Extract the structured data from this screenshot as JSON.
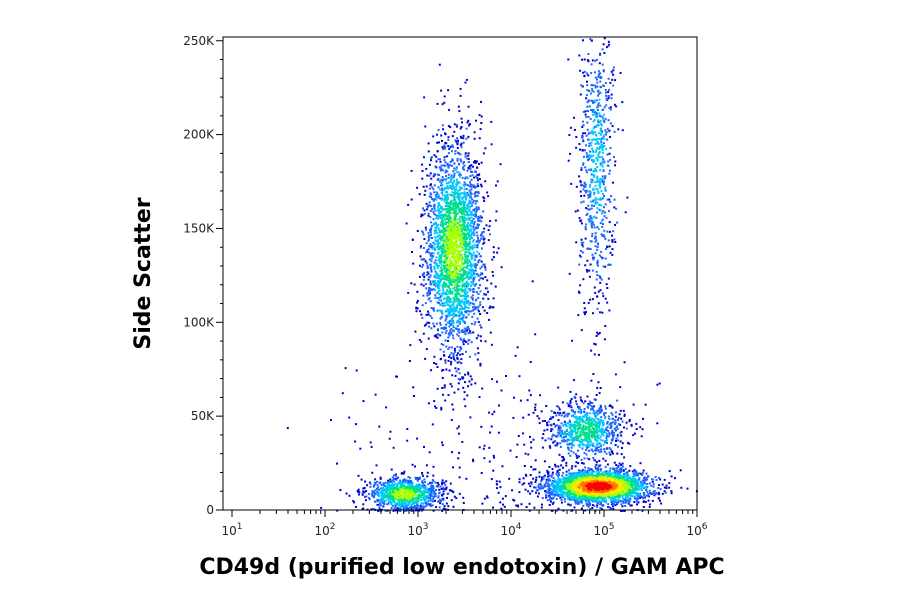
{
  "chart_data": {
    "type": "scatter",
    "subtype": "flow-cytometry-density-dot-plot",
    "xlabel": "CD49d (purified low endotoxin) / GAM APC",
    "ylabel": "Side Scatter",
    "x_scale": "log",
    "xlim": [
      8,
      1000000
    ],
    "ylim": [
      0,
      252000
    ],
    "x_ticks": [
      {
        "value": 10,
        "base": "10",
        "exp": "1"
      },
      {
        "value": 100,
        "base": "10",
        "exp": "2"
      },
      {
        "value": 1000,
        "base": "10",
        "exp": "3"
      },
      {
        "value": 10000,
        "base": "10",
        "exp": "4"
      },
      {
        "value": 100000,
        "base": "10",
        "exp": "5"
      },
      {
        "value": 1000000,
        "base": "10",
        "exp": "6"
      }
    ],
    "y_ticks": [
      {
        "value": 0,
        "label": "0"
      },
      {
        "value": 50000,
        "label": "50K"
      },
      {
        "value": 100000,
        "label": "100K"
      },
      {
        "value": 150000,
        "label": "150K"
      },
      {
        "value": 200000,
        "label": "200K"
      },
      {
        "value": 250000,
        "label": "250K"
      }
    ],
    "density_colors": [
      "#0000cc",
      "#1e64ff",
      "#00c8ff",
      "#00e08c",
      "#aaff00",
      "#ffe600",
      "#ff7800",
      "#ff0000"
    ],
    "populations": [
      {
        "center_x": 2400,
        "center_y": 140000,
        "sd_log10_x": 0.16,
        "sd_y": 28000,
        "count": 2600,
        "peak_color_index": 4
      },
      {
        "center_x": 700,
        "center_y": 9000,
        "sd_log10_x": 0.2,
        "sd_y": 4500,
        "count": 900,
        "peak_color_index": 4
      },
      {
        "center_x": 85000,
        "center_y": 13000,
        "sd_log10_x": 0.28,
        "sd_y": 4500,
        "count": 2400,
        "peak_color_index": 7
      },
      {
        "center_x": 62000,
        "center_y": 43000,
        "sd_log10_x": 0.2,
        "sd_y": 8000,
        "count": 750,
        "peak_color_index": 3
      },
      {
        "center_x": 82000,
        "center_y": 185000,
        "sd_log10_x": 0.1,
        "sd_y": 40000,
        "count": 700,
        "peak_color_index": 2
      },
      {
        "center_x": 5000,
        "center_y": 30000,
        "sd_log10_x": 0.8,
        "sd_y": 35000,
        "count": 260,
        "peak_color_index": 0
      }
    ]
  }
}
